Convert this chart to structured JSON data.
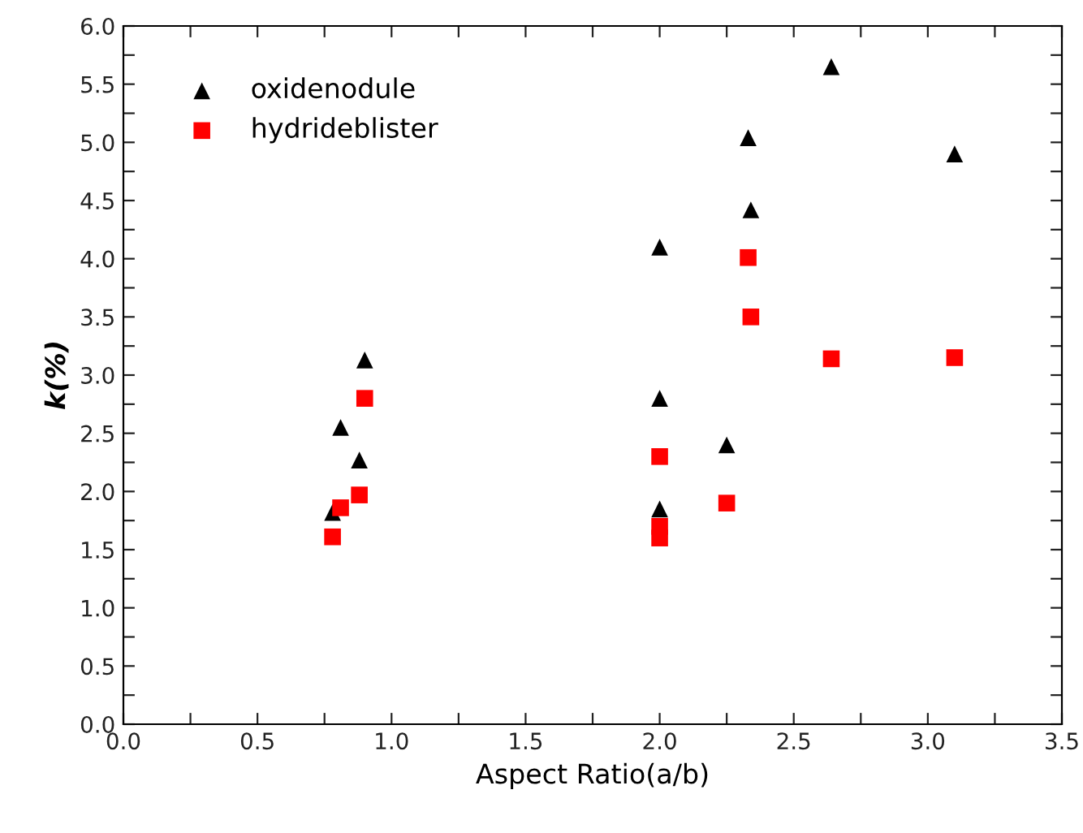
{
  "chart_data": {
    "type": "scatter",
    "xlabel": "Aspect Ratio(a/b)",
    "ylabel": "k(%)",
    "xlim": [
      0.0,
      3.5
    ],
    "ylim": [
      0.0,
      6.0
    ],
    "xticks": [
      {
        "value": 0,
        "label": "0.0"
      },
      {
        "value": 0.25,
        "label": null
      },
      0.5,
      {
        "value": 0.75,
        "label": null
      },
      {
        "value": 1,
        "label": "1.0"
      },
      {
        "value": 1.25,
        "label": null
      },
      1.5,
      {
        "value": 1.75,
        "label": null
      },
      {
        "value": 2,
        "label": "2.0"
      },
      {
        "value": 2.25,
        "label": null
      },
      2.5,
      {
        "value": 2.75,
        "label": null
      },
      {
        "value": 3,
        "label": "3.0"
      },
      {
        "value": 3.25,
        "label": null
      },
      3.5
    ],
    "yticks": [
      {
        "value": 0,
        "label": "0.0"
      },
      {
        "value": 0.25,
        "label": null
      },
      0.5,
      {
        "value": 0.75,
        "label": null
      },
      {
        "value": 1,
        "label": "1.0"
      },
      {
        "value": 1.25,
        "label": null
      },
      1.5,
      {
        "value": 1.75,
        "label": null
      },
      {
        "value": 2,
        "label": "2.0"
      },
      {
        "value": 2.25,
        "label": null
      },
      2.5,
      {
        "value": 2.75,
        "label": null
      },
      {
        "value": 3,
        "label": "3.0"
      },
      {
        "value": 3.25,
        "label": null
      },
      3.5,
      {
        "value": 3.75,
        "label": null
      },
      {
        "value": 4,
        "label": "4.0"
      },
      {
        "value": 4.25,
        "label": null
      },
      4.5,
      {
        "value": 4.75,
        "label": null
      },
      {
        "value": 5,
        "label": "5.0"
      },
      {
        "value": 5.25,
        "label": null
      },
      5.5,
      {
        "value": 5.75,
        "label": null
      },
      {
        "value": 6,
        "label": "6.0"
      }
    ],
    "grid": false,
    "legend": "top left",
    "series": [
      {
        "name": "oxidenodule",
        "color": "#000000",
        "marker": "triangle",
        "x": [
          0.78,
          0.81,
          0.88,
          0.9,
          2.0,
          2.0,
          2.0,
          2.25,
          2.33,
          2.34,
          2.64,
          3.1
        ],
        "values": [
          1.82,
          2.55,
          2.27,
          3.13,
          4.1,
          2.8,
          1.85,
          2.4,
          5.04,
          4.42,
          5.65,
          4.9
        ]
      },
      {
        "name": "hydrideblister",
        "color": "#ff0000",
        "marker": "square",
        "x": [
          0.78,
          0.81,
          0.88,
          0.9,
          2.0,
          2.0,
          2.0,
          2.25,
          2.33,
          2.34,
          2.64,
          3.1
        ],
        "values": [
          1.61,
          1.86,
          1.97,
          2.8,
          2.3,
          1.7,
          1.6,
          1.9,
          4.01,
          3.5,
          3.14,
          3.15
        ]
      }
    ]
  }
}
